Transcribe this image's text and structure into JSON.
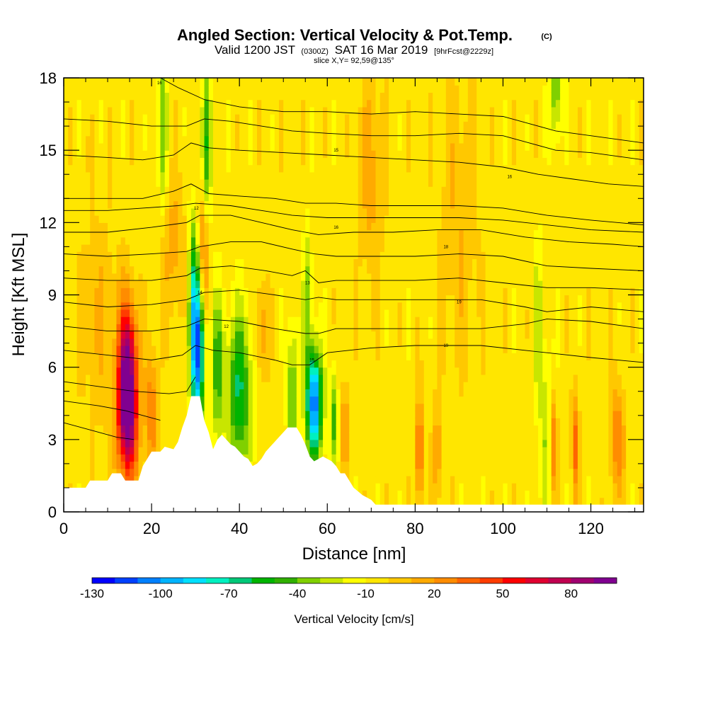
{
  "chart_data": {
    "type": "heatmap",
    "title": "Angled Section: Vertical Velocity & Pot.Temp.",
    "title_mark": "(C)",
    "subtitle_parts": {
      "valid": "Valid 1200 JST",
      "utc": "(0300Z)",
      "date": "SAT 16 Mar 2019",
      "forecast": "[9hrFcst@2229z]"
    },
    "slice_info": "slice X,Y= 92,59@135°",
    "xlabel": "Distance [nm]",
    "ylabel": "Height [Kft MSL]",
    "xlim": [
      0,
      132
    ],
    "ylim": [
      0,
      18
    ],
    "xticks": [
      "0",
      "20",
      "40",
      "60",
      "80",
      "100",
      "120"
    ],
    "yticks": [
      "0",
      "3",
      "6",
      "9",
      "12",
      "15",
      "18"
    ],
    "colorbar": {
      "label": "Vertical Velocity [cm/s]",
      "tick_labels": [
        "-130",
        "-100",
        "-70",
        "-40",
        "-10",
        "20",
        "50",
        "80"
      ],
      "tick_values": [
        -130,
        -100,
        -70,
        -40,
        -10,
        20,
        50,
        80
      ],
      "min": -130,
      "max": 100,
      "colors": [
        "#0000ff",
        "#0040ff",
        "#0080ff",
        "#00b4ff",
        "#00e0ff",
        "#00f0c0",
        "#00c878",
        "#00b400",
        "#30b000",
        "#80d000",
        "#c8e600",
        "#ffff00",
        "#ffe600",
        "#ffc800",
        "#ffaa00",
        "#ff8c00",
        "#ff6400",
        "#ff3c00",
        "#ff0000",
        "#e00030",
        "#c00050",
        "#a00070",
        "#800090"
      ]
    },
    "background_value": -5,
    "terrain": [
      [
        0,
        1.0
      ],
      [
        5,
        1.0
      ],
      [
        6,
        1.3
      ],
      [
        10,
        1.3
      ],
      [
        11,
        1.6
      ],
      [
        13,
        1.6
      ],
      [
        14,
        1.3
      ],
      [
        17,
        1.3
      ],
      [
        18,
        1.9
      ],
      [
        19,
        2.2
      ],
      [
        20,
        2.5
      ],
      [
        22,
        2.5
      ],
      [
        23,
        2.7
      ],
      [
        25,
        2.6
      ],
      [
        26,
        2.9
      ],
      [
        27,
        3.5
      ],
      [
        28,
        4.0
      ],
      [
        29,
        4.8
      ],
      [
        31,
        4.8
      ],
      [
        32,
        3.8
      ],
      [
        33,
        3.3
      ],
      [
        34,
        2.6
      ],
      [
        35,
        3.0
      ],
      [
        36,
        3.2
      ],
      [
        37,
        3.0
      ],
      [
        38,
        2.8
      ],
      [
        39,
        2.7
      ],
      [
        40,
        2.5
      ],
      [
        41,
        2.3
      ],
      [
        42,
        2.2
      ],
      [
        43,
        1.9
      ],
      [
        44,
        2.0
      ],
      [
        45,
        2.2
      ],
      [
        46,
        2.5
      ],
      [
        47,
        2.7
      ],
      [
        48,
        2.9
      ],
      [
        49,
        3.1
      ],
      [
        50,
        3.3
      ],
      [
        51,
        3.5
      ],
      [
        53,
        3.5
      ],
      [
        54,
        3.2
      ],
      [
        55,
        2.8
      ],
      [
        56,
        2.3
      ],
      [
        57,
        2.1
      ],
      [
        58,
        2.2
      ],
      [
        59,
        2.3
      ],
      [
        60,
        2.2
      ],
      [
        61,
        2.1
      ],
      [
        62,
        1.9
      ],
      [
        63,
        1.6
      ],
      [
        64,
        1.6
      ],
      [
        65,
        1.3
      ],
      [
        66,
        1.0
      ],
      [
        68,
        0.7
      ],
      [
        70,
        0.5
      ],
      [
        71,
        0.3
      ],
      [
        132,
        0.3
      ]
    ],
    "features": [
      {
        "x": 14.5,
        "y": 5.6,
        "sx": 1.5,
        "sy": 2.1,
        "value": 110
      },
      {
        "x": 14.5,
        "y": 3.2,
        "sx": 1.8,
        "sy": 1.6,
        "value": 45
      },
      {
        "x": 20.0,
        "y": 4.3,
        "sx": 1.0,
        "sy": 1.8,
        "value": 35
      },
      {
        "x": 30.5,
        "y": 6.6,
        "sx": 1.1,
        "sy": 2.1,
        "value": -100
      },
      {
        "x": 29.5,
        "y": 9.5,
        "sx": 0.8,
        "sy": 2.2,
        "value": -45
      },
      {
        "x": 32.0,
        "y": 11.0,
        "sx": 0.9,
        "sy": 2.0,
        "value": 45
      },
      {
        "x": 32.5,
        "y": 14.5,
        "sx": 0.8,
        "sy": 2.8,
        "value": -45
      },
      {
        "x": 22.5,
        "y": 16.0,
        "sx": 0.8,
        "sy": 2.5,
        "value": -30
      },
      {
        "x": 40.0,
        "y": 5.0,
        "sx": 2.0,
        "sy": 2.3,
        "value": -55
      },
      {
        "x": 35.0,
        "y": 6.0,
        "sx": 1.0,
        "sy": 2.2,
        "value": -40
      },
      {
        "x": 45.0,
        "y": 7.5,
        "sx": 1.0,
        "sy": 1.5,
        "value": 25
      },
      {
        "x": 52.0,
        "y": 5.0,
        "sx": 0.8,
        "sy": 2.0,
        "value": -40
      },
      {
        "x": 57.0,
        "y": 4.5,
        "sx": 1.3,
        "sy": 1.6,
        "value": -105
      },
      {
        "x": 55.5,
        "y": 9.0,
        "sx": 0.7,
        "sy": 2.0,
        "value": -30
      },
      {
        "x": 61.5,
        "y": 4.0,
        "sx": 0.6,
        "sy": 1.4,
        "value": -40
      },
      {
        "x": 64.0,
        "y": 3.5,
        "sx": 0.6,
        "sy": 1.3,
        "value": 30
      },
      {
        "x": 81.0,
        "y": 2.5,
        "sx": 0.6,
        "sy": 1.5,
        "value": 45
      },
      {
        "x": 85.0,
        "y": 2.5,
        "sx": 0.8,
        "sy": 1.5,
        "value": 25
      },
      {
        "x": 110.0,
        "y": 3.2,
        "sx": 1.2,
        "sy": 2.5,
        "value": -25
      },
      {
        "x": 111.5,
        "y": 2.8,
        "sx": 0.6,
        "sy": 1.5,
        "value": 45
      },
      {
        "x": 116.5,
        "y": 2.8,
        "sx": 0.6,
        "sy": 1.5,
        "value": 40
      },
      {
        "x": 126.0,
        "y": 3.0,
        "sx": 1.2,
        "sy": 1.6,
        "value": 35
      },
      {
        "x": 108.0,
        "y": 8.0,
        "sx": 0.8,
        "sy": 2.5,
        "value": -20
      },
      {
        "x": 112.0,
        "y": 17.5,
        "sx": 1.0,
        "sy": 1.5,
        "value": -35
      },
      {
        "x": 25.0,
        "y": 11.0,
        "sx": 2.0,
        "sy": 2.0,
        "value": 20
      },
      {
        "x": 8.0,
        "y": 8.0,
        "sx": 3.0,
        "sy": 3.0,
        "value": 15
      },
      {
        "x": 90.0,
        "y": 12.0,
        "sx": 3.0,
        "sy": 4.0,
        "value": 15
      },
      {
        "x": 70.0,
        "y": 14.0,
        "sx": 2.0,
        "sy": 3.0,
        "value": 20
      }
    ],
    "contours": [
      [
        [
          0,
          3.7
        ],
        [
          6,
          3.4
        ],
        [
          12,
          3.1
        ],
        [
          16,
          3.0
        ]
      ],
      [
        [
          0,
          4.6
        ],
        [
          8,
          4.4
        ],
        [
          14,
          4.2
        ],
        [
          18,
          4.0
        ],
        [
          22,
          3.8
        ]
      ],
      [
        [
          0,
          5.4
        ],
        [
          8,
          5.2
        ],
        [
          16,
          5.0
        ],
        [
          24,
          4.9
        ],
        [
          28,
          5.0
        ],
        [
          30,
          5.6
        ]
      ],
      [
        [
          0,
          6.7
        ],
        [
          10,
          6.5
        ],
        [
          20,
          6.3
        ],
        [
          27,
          6.5
        ],
        [
          30,
          6.9
        ],
        [
          34,
          6.7
        ],
        [
          40,
          6.6
        ],
        [
          48,
          6.3
        ],
        [
          52,
          6.1
        ],
        [
          56,
          6.1
        ],
        [
          60,
          6.6
        ],
        [
          70,
          6.8
        ],
        [
          80,
          6.9
        ],
        [
          95,
          6.9
        ],
        [
          110,
          6.6
        ],
        [
          120,
          6.4
        ],
        [
          132,
          6.2
        ]
      ],
      [
        [
          0,
          7.7
        ],
        [
          10,
          7.5
        ],
        [
          20,
          7.5
        ],
        [
          28,
          7.7
        ],
        [
          32,
          8.0
        ],
        [
          40,
          7.9
        ],
        [
          48,
          7.6
        ],
        [
          55,
          7.4
        ],
        [
          58,
          7.4
        ],
        [
          62,
          7.6
        ],
        [
          70,
          7.6
        ],
        [
          80,
          7.6
        ],
        [
          95,
          7.6
        ],
        [
          105,
          7.8
        ],
        [
          110,
          8.0
        ],
        [
          120,
          7.9
        ],
        [
          132,
          7.6
        ]
      ],
      [
        [
          0,
          8.7
        ],
        [
          10,
          8.5
        ],
        [
          20,
          8.6
        ],
        [
          28,
          8.8
        ],
        [
          32,
          9.1
        ],
        [
          40,
          9.2
        ],
        [
          48,
          9.0
        ],
        [
          55,
          8.8
        ],
        [
          58,
          8.9
        ],
        [
          62,
          8.8
        ],
        [
          70,
          8.8
        ],
        [
          80,
          8.8
        ],
        [
          95,
          8.8
        ],
        [
          105,
          8.5
        ],
        [
          110,
          8.3
        ],
        [
          120,
          8.5
        ],
        [
          132,
          8.3
        ]
      ],
      [
        [
          0,
          9.7
        ],
        [
          10,
          9.6
        ],
        [
          20,
          9.6
        ],
        [
          28,
          9.8
        ],
        [
          31,
          10.1
        ],
        [
          38,
          10.2
        ],
        [
          46,
          10.0
        ],
        [
          52,
          9.8
        ],
        [
          55,
          10.0
        ],
        [
          58,
          9.5
        ],
        [
          62,
          9.6
        ],
        [
          70,
          9.6
        ],
        [
          80,
          9.6
        ],
        [
          90,
          9.7
        ],
        [
          100,
          9.5
        ],
        [
          110,
          9.3
        ],
        [
          120,
          9.3
        ],
        [
          132,
          9.2
        ]
      ],
      [
        [
          0,
          10.7
        ],
        [
          10,
          10.6
        ],
        [
          20,
          10.7
        ],
        [
          28,
          10.8
        ],
        [
          31,
          11.0
        ],
        [
          38,
          11.2
        ],
        [
          45,
          11.2
        ],
        [
          52,
          10.9
        ],
        [
          57,
          10.7
        ],
        [
          62,
          10.6
        ],
        [
          70,
          10.6
        ],
        [
          80,
          10.6
        ],
        [
          90,
          10.7
        ],
        [
          100,
          10.6
        ],
        [
          110,
          10.2
        ],
        [
          120,
          10.1
        ],
        [
          132,
          10.0
        ]
      ],
      [
        [
          0,
          11.6
        ],
        [
          10,
          11.6
        ],
        [
          20,
          11.8
        ],
        [
          28,
          12.0
        ],
        [
          31,
          12.3
        ],
        [
          38,
          12.3
        ],
        [
          45,
          12.0
        ],
        [
          52,
          11.7
        ],
        [
          58,
          11.5
        ],
        [
          66,
          11.6
        ],
        [
          75,
          11.6
        ],
        [
          85,
          11.7
        ],
        [
          95,
          11.7
        ],
        [
          105,
          11.4
        ],
        [
          115,
          11.2
        ],
        [
          125,
          11.1
        ],
        [
          132,
          11.0
        ]
      ],
      [
        [
          0,
          12.5
        ],
        [
          10,
          12.5
        ],
        [
          18,
          12.6
        ],
        [
          26,
          12.7
        ],
        [
          30,
          12.8
        ],
        [
          38,
          12.7
        ],
        [
          45,
          12.5
        ],
        [
          52,
          12.3
        ],
        [
          60,
          12.2
        ],
        [
          70,
          12.2
        ],
        [
          80,
          12.2
        ],
        [
          90,
          12.2
        ],
        [
          100,
          12.1
        ],
        [
          110,
          11.9
        ],
        [
          120,
          11.7
        ],
        [
          132,
          11.6
        ]
      ],
      [
        [
          0,
          13.0
        ],
        [
          10,
          13.0
        ],
        [
          18,
          13.0
        ],
        [
          25,
          13.3
        ],
        [
          29,
          13.6
        ],
        [
          33,
          13.2
        ],
        [
          40,
          13.1
        ],
        [
          48,
          13.0
        ],
        [
          55,
          12.8
        ],
        [
          62,
          12.8
        ],
        [
          70,
          12.7
        ],
        [
          80,
          12.7
        ],
        [
          90,
          12.7
        ],
        [
          100,
          12.6
        ],
        [
          110,
          12.3
        ],
        [
          120,
          12.1
        ],
        [
          132,
          11.9
        ]
      ],
      [
        [
          0,
          14.8
        ],
        [
          10,
          14.7
        ],
        [
          18,
          14.6
        ],
        [
          25,
          14.8
        ],
        [
          29,
          15.3
        ],
        [
          33,
          15.1
        ],
        [
          40,
          15.0
        ],
        [
          50,
          14.9
        ],
        [
          60,
          14.8
        ],
        [
          70,
          14.7
        ],
        [
          80,
          14.6
        ],
        [
          90,
          14.5
        ],
        [
          100,
          14.3
        ],
        [
          108,
          14.0
        ],
        [
          116,
          13.8
        ],
        [
          124,
          13.6
        ],
        [
          132,
          13.5
        ]
      ],
      [
        [
          0,
          16.3
        ],
        [
          10,
          16.2
        ],
        [
          20,
          16.0
        ],
        [
          28,
          16.0
        ],
        [
          32,
          16.3
        ],
        [
          38,
          16.2
        ],
        [
          45,
          16.0
        ],
        [
          52,
          15.8
        ],
        [
          60,
          15.7
        ],
        [
          70,
          15.6
        ],
        [
          80,
          15.6
        ],
        [
          90,
          15.7
        ],
        [
          100,
          15.6
        ],
        [
          106,
          15.3
        ],
        [
          112,
          15.0
        ],
        [
          120,
          14.9
        ],
        [
          132,
          14.6
        ]
      ],
      [
        [
          22,
          18.0
        ],
        [
          26,
          17.6
        ],
        [
          32,
          17.1
        ],
        [
          40,
          16.8
        ],
        [
          50,
          16.6
        ],
        [
          60,
          16.6
        ],
        [
          70,
          16.5
        ],
        [
          80,
          16.6
        ],
        [
          90,
          16.5
        ],
        [
          100,
          16.4
        ],
        [
          106,
          16.1
        ],
        [
          112,
          15.8
        ],
        [
          120,
          15.6
        ],
        [
          132,
          15.3
        ]
      ]
    ],
    "contour_labels": [
      {
        "x": 21.8,
        "y": 17.8,
        "text": "16"
      },
      {
        "x": 62.0,
        "y": 15.0,
        "text": "15"
      },
      {
        "x": 101.5,
        "y": 13.9,
        "text": "16"
      },
      {
        "x": 30.2,
        "y": 12.6,
        "text": "12"
      },
      {
        "x": 62.0,
        "y": 11.8,
        "text": "16"
      },
      {
        "x": 87.0,
        "y": 11.0,
        "text": "18"
      },
      {
        "x": 55.5,
        "y": 9.5,
        "text": "13"
      },
      {
        "x": 31.0,
        "y": 9.1,
        "text": "14"
      },
      {
        "x": 90.0,
        "y": 8.7,
        "text": "19"
      },
      {
        "x": 37.0,
        "y": 7.7,
        "text": "12"
      },
      {
        "x": 87.0,
        "y": 6.9,
        "text": "19"
      },
      {
        "x": 56.5,
        "y": 6.3,
        "text": "15"
      }
    ]
  }
}
